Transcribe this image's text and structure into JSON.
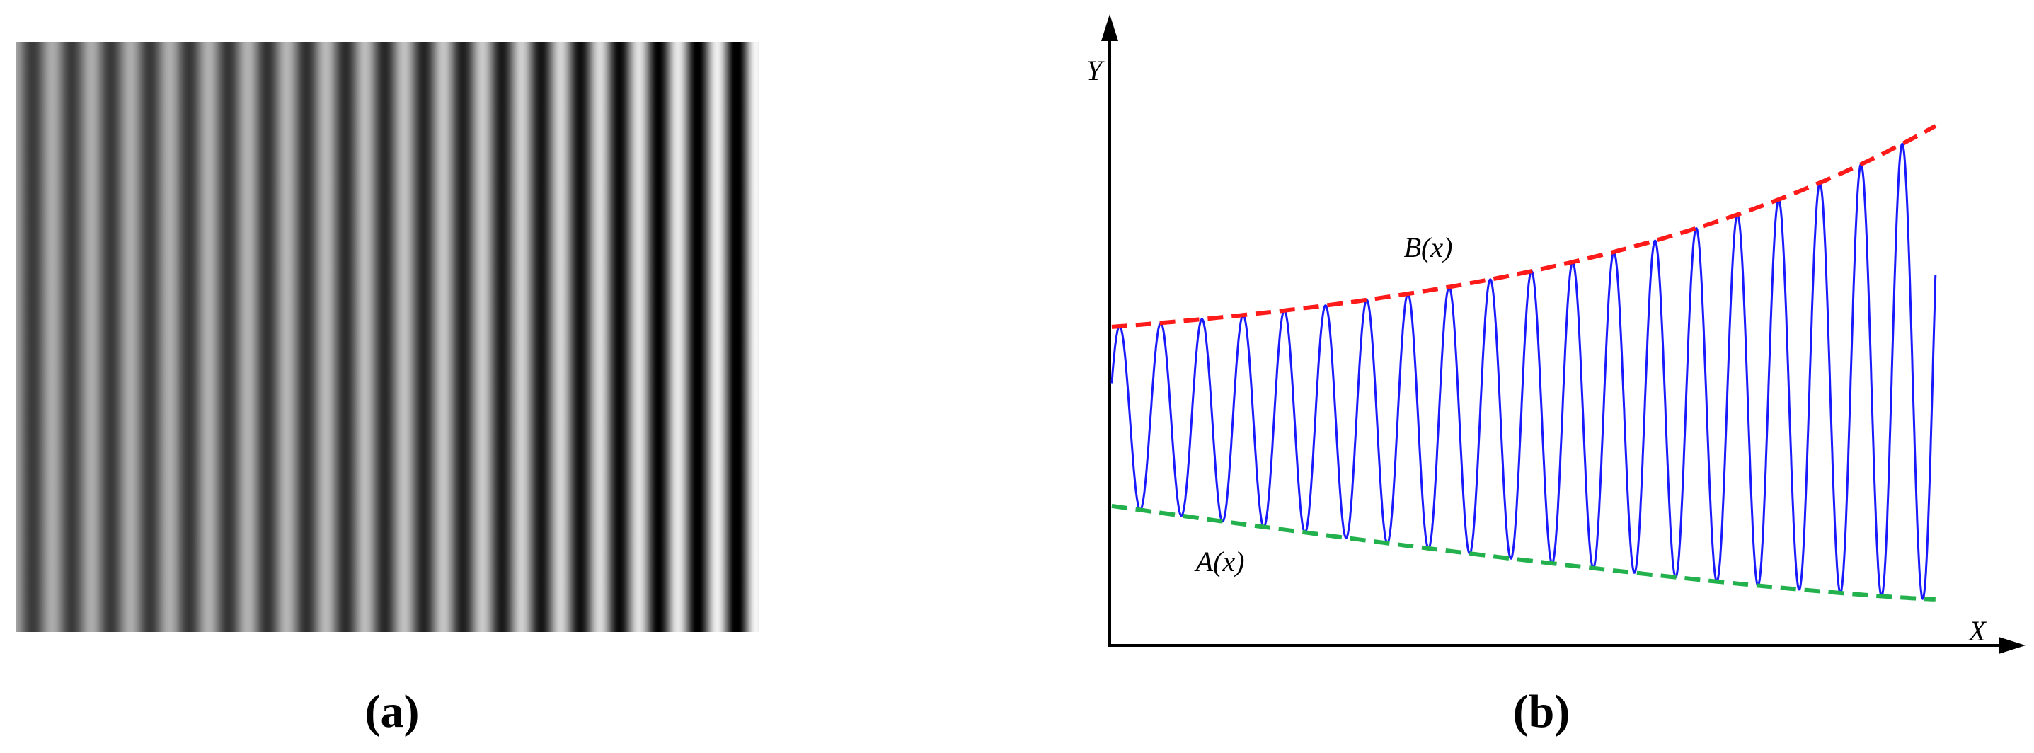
{
  "panels": [
    {
      "label": "(a)"
    },
    {
      "label": "(b)",
      "y_axis_label": "Y",
      "x_axis_label": "X",
      "upper_curve_label": "B(x)",
      "lower_curve_label": "A(x)"
    }
  ]
}
